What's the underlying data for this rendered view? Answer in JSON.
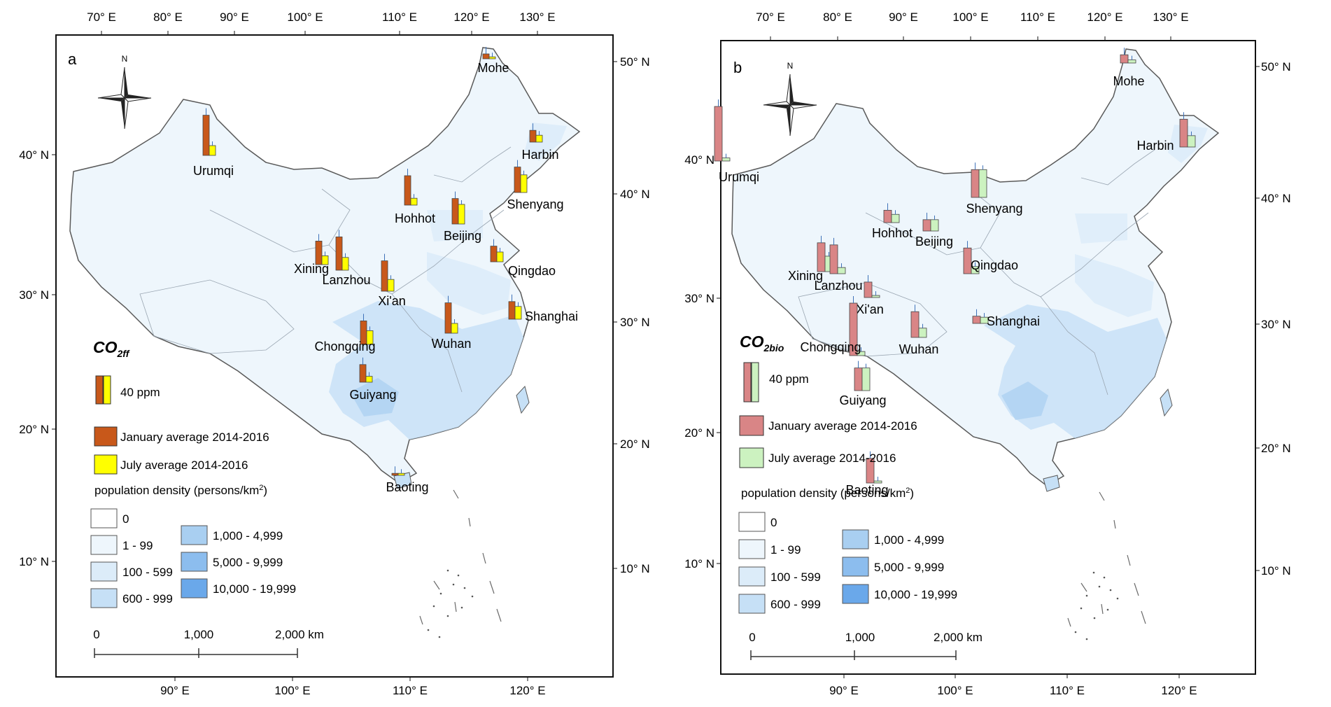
{
  "panels": [
    {
      "label": "a",
      "top_lon_labels": [
        "70° E",
        "80° E",
        "90° E",
        "100° E",
        "110° E",
        "120° E",
        "130° E"
      ],
      "bottom_lon_labels": [
        "90° E",
        "100° E",
        "110° E",
        "120° E"
      ],
      "left_lat_labels": [
        "40° N",
        "30° N",
        "20° N",
        "10° N"
      ],
      "right_lat_labels": [
        "50° N",
        "40° N",
        "30° N",
        "20° N",
        "10° N"
      ],
      "legend": {
        "variable": "CO",
        "variable_sub": "2ff",
        "scale_label": "40 ppm",
        "jan_label": "January average 2014-2016",
        "jul_label": "July average 2014-2016",
        "jan_color": "#c8581a",
        "jul_color": "#ffff00",
        "pop_title": "population density (persons/km",
        "pop_sup": "2",
        "pop_close": ")",
        "pop_classes": [
          "0",
          "1 - 99",
          "100 - 599",
          "600 - 999",
          "1,000 - 4,999",
          "5,000 - 9,999",
          "10,000 - 19,999"
        ],
        "pop_colors": [
          "#ffffff",
          "#eef6fc",
          "#dcecf9",
          "#c6e0f6",
          "#a9cff1",
          "#8cbdee",
          "#6aa8ea"
        ]
      },
      "scalebar": [
        "0",
        "1,000",
        "2,000 km"
      ],
      "cities": [
        {
          "name": "Mohe",
          "jan": 5,
          "jul": 2
        },
        {
          "name": "Urumqi",
          "jan": 41,
          "jul": 10
        },
        {
          "name": "Harbin",
          "jan": 12,
          "jul": 7
        },
        {
          "name": "Hohhot",
          "jan": 30,
          "jul": 7
        },
        {
          "name": "Beijing",
          "jan": 26,
          "jul": 20
        },
        {
          "name": "Shenyang",
          "jan": 26,
          "jul": 18
        },
        {
          "name": "Xining",
          "jan": 24,
          "jul": 9
        },
        {
          "name": "Lanzhou",
          "jan": 34,
          "jul": 13
        },
        {
          "name": "Xi'an",
          "jan": 31,
          "jul": 12
        },
        {
          "name": "Qingdao",
          "jan": 16,
          "jul": 10
        },
        {
          "name": "Shanghai",
          "jan": 18,
          "jul": 13
        },
        {
          "name": "Chongqing",
          "jan": 24,
          "jul": 14
        },
        {
          "name": "Wuhan",
          "jan": 31,
          "jul": 10
        },
        {
          "name": "Guiyang",
          "jan": 18,
          "jul": 6
        },
        {
          "name": "Baoting",
          "jan": 2,
          "jul": 2
        }
      ]
    },
    {
      "label": "b",
      "top_lon_labels": [
        "70° E",
        "80° E",
        "90° E",
        "100° E",
        "110° E",
        "120° E",
        "130° E"
      ],
      "bottom_lon_labels": [
        "90° E",
        "100° E",
        "110° E",
        "120° E"
      ],
      "left_lat_labels": [
        "40° N",
        "30° N",
        "20° N",
        "10° N"
      ],
      "right_lat_labels": [
        "50° N",
        "40° N",
        "30° N",
        "20° N",
        "10° N"
      ],
      "legend": {
        "variable": "CO",
        "variable_sub": "2bio",
        "scale_label": "40 ppm",
        "jan_label": "January average 2014-2016",
        "jul_label": "July average 2014-2016",
        "jan_color": "#d98586",
        "jul_color": "#ccf2c0",
        "pop_title": "population density (persons/km",
        "pop_sup": "2",
        "pop_close": ")",
        "pop_classes": [
          "0",
          "1 - 99",
          "100 - 599",
          "600 - 999",
          "1,000 - 4,999",
          "5,000 - 9,999",
          "10,000 - 19,999"
        ],
        "pop_colors": [
          "#ffffff",
          "#eef6fc",
          "#dcecf9",
          "#c6e0f6",
          "#a9cff1",
          "#8cbdee",
          "#6aa8ea"
        ]
      },
      "scalebar": [
        "0",
        "1,000",
        "2,000 km"
      ],
      "cities": [
        {
          "name": "Mohe",
          "jan": 8,
          "jul": 3
        },
        {
          "name": "Urumqi",
          "jan": 53,
          "jul": 3
        },
        {
          "name": "Harbin",
          "jan": 27,
          "jul": 11
        },
        {
          "name": "Hohhot",
          "jan": 12,
          "jul": 8
        },
        {
          "name": "Beijing",
          "jan": 11,
          "jul": 11
        },
        {
          "name": "Shenyang",
          "jan": 27,
          "jul": 27
        },
        {
          "name": "Xining",
          "jan": 28,
          "jul": 15
        },
        {
          "name": "Lanzhou",
          "jan": 28,
          "jul": 6
        },
        {
          "name": "Xi'an",
          "jan": 15,
          "jul": 2
        },
        {
          "name": "Qingdao",
          "jan": 25,
          "jul": 7
        },
        {
          "name": "Shanghai",
          "jan": 7,
          "jul": 6
        },
        {
          "name": "Chongqing",
          "jan": 51,
          "jul": 4
        },
        {
          "name": "Wuhan",
          "jan": 25,
          "jul": 9
        },
        {
          "name": "Guiyang",
          "jan": 22,
          "jul": 22
        },
        {
          "name": "Baoting",
          "jan": 24,
          "jul": 2
        }
      ]
    }
  ]
}
